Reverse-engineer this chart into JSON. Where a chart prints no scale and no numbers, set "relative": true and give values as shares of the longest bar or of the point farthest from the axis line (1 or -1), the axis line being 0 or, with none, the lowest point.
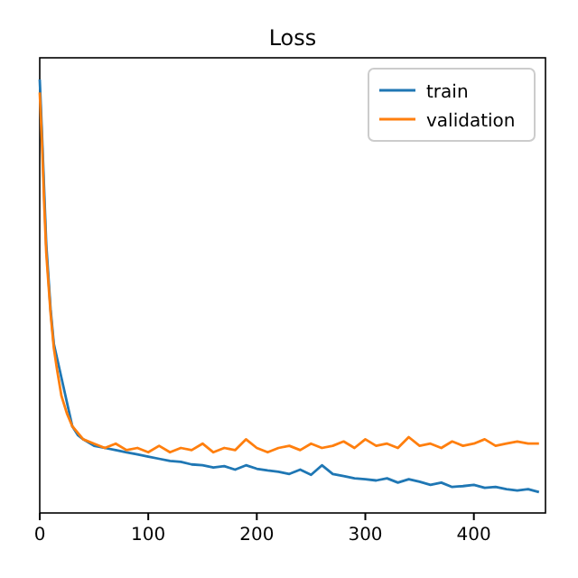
{
  "chart_data": {
    "type": "line",
    "title": "Loss",
    "relative": true,
    "legend": "top right",
    "x": [
      0,
      2,
      4,
      6,
      8,
      10,
      13,
      16,
      20,
      25,
      30,
      35,
      40,
      50,
      60,
      70,
      80,
      90,
      100,
      110,
      120,
      130,
      140,
      150,
      160,
      170,
      180,
      190,
      200,
      210,
      220,
      230,
      240,
      250,
      260,
      270,
      280,
      290,
      300,
      310,
      320,
      330,
      340,
      350,
      360,
      370,
      380,
      390,
      400,
      410,
      420,
      430,
      440,
      450,
      460
    ],
    "xlim": [
      0,
      466
    ],
    "xticks": [
      0,
      100,
      200,
      300,
      400
    ],
    "series": [
      {
        "name": "train",
        "color": "#1f77b4",
        "values": [
          1,
          0.88,
          null,
          0.62,
          null,
          0.47,
          0.39,
          null,
          null,
          null,
          0.2,
          0.18,
          0.17,
          0.155,
          0.15,
          0.145,
          0.14,
          0.135,
          0.13,
          0.125,
          0.12,
          0.118,
          0.112,
          0.11,
          0.105,
          0.108,
          0.1,
          0.11,
          0.102,
          0.098,
          0.095,
          0.09,
          0.1,
          0.088,
          0.11,
          0.09,
          0.085,
          0.08,
          0.078,
          0.075,
          0.08,
          0.07,
          0.078,
          0.072,
          0.065,
          0.07,
          0.06,
          0.062,
          0.065,
          0.058,
          0.06,
          0.055,
          0.052,
          0.055,
          0.048
        ]
      },
      {
        "name": "validation",
        "color": "#ff7f0e",
        "values": [
          0.97,
          0.86,
          0.72,
          0.6,
          0.53,
          0.46,
          0.38,
          0.33,
          0.27,
          0.23,
          0.2,
          0.185,
          0.17,
          0.16,
          0.15,
          0.16,
          0.145,
          0.15,
          0.14,
          0.155,
          0.14,
          0.15,
          0.145,
          0.16,
          0.14,
          0.15,
          0.145,
          0.17,
          0.15,
          0.14,
          0.15,
          0.155,
          0.145,
          0.16,
          0.15,
          0.155,
          0.165,
          0.15,
          0.17,
          0.155,
          0.16,
          0.15,
          0.175,
          0.155,
          0.16,
          0.15,
          0.165,
          0.155,
          0.16,
          0.17,
          0.155,
          0.16,
          0.165,
          0.16,
          0.16
        ]
      }
    ]
  }
}
